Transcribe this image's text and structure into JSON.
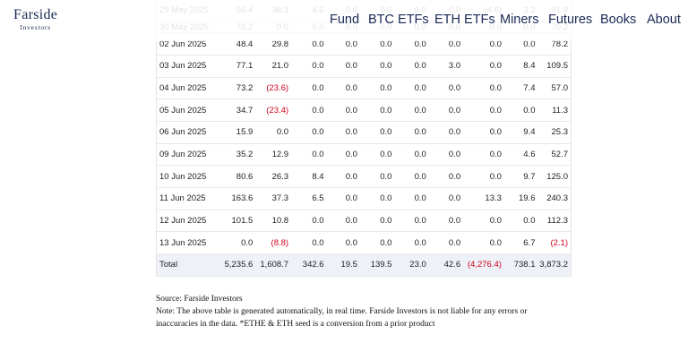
{
  "header": {
    "logo_main": "Farside",
    "logo_sub": "Investors",
    "nav": [
      "Fund",
      "BTC ETFs",
      "ETH ETFs",
      "Miners",
      "Futures",
      "Books",
      "About"
    ]
  },
  "table": {
    "rows": [
      {
        "date": "29 May 2025",
        "cells": [
          "50.4",
          "38.3",
          "4.6",
          "0.0",
          "0.0",
          "0.0",
          "0.0",
          "(4.6)",
          "3.2",
          "91.9"
        ]
      },
      {
        "date": "30 May 2025",
        "cells": [
          "70.2",
          "0.0",
          "0.0",
          "0.0",
          "0.0",
          "0.0",
          "0.0",
          "0.0",
          "0.0",
          "70.2"
        ]
      },
      {
        "date": "02 Jun 2025",
        "cells": [
          "48.4",
          "29.8",
          "0.0",
          "0.0",
          "0.0",
          "0.0",
          "0.0",
          "0.0",
          "0.0",
          "78.2"
        ]
      },
      {
        "date": "03 Jun 2025",
        "cells": [
          "77.1",
          "21.0",
          "0.0",
          "0.0",
          "0.0",
          "0.0",
          "3.0",
          "0.0",
          "8.4",
          "109.5"
        ]
      },
      {
        "date": "04 Jun 2025",
        "cells": [
          "73.2",
          "(23.6)",
          "0.0",
          "0.0",
          "0.0",
          "0.0",
          "0.0",
          "0.0",
          "7.4",
          "57.0"
        ]
      },
      {
        "date": "05 Jun 2025",
        "cells": [
          "34.7",
          "(23.4)",
          "0.0",
          "0.0",
          "0.0",
          "0.0",
          "0.0",
          "0.0",
          "0.0",
          "11.3"
        ]
      },
      {
        "date": "06 Jun 2025",
        "cells": [
          "15.9",
          "0.0",
          "0.0",
          "0.0",
          "0.0",
          "0.0",
          "0.0",
          "0.0",
          "9.4",
          "25.3"
        ]
      },
      {
        "date": "09 Jun 2025",
        "cells": [
          "35.2",
          "12.9",
          "0.0",
          "0.0",
          "0.0",
          "0.0",
          "0.0",
          "0.0",
          "4.6",
          "52.7"
        ]
      },
      {
        "date": "10 Jun 2025",
        "cells": [
          "80.6",
          "26.3",
          "8.4",
          "0.0",
          "0.0",
          "0.0",
          "0.0",
          "0.0",
          "9.7",
          "125.0"
        ]
      },
      {
        "date": "11 Jun 2025",
        "cells": [
          "163.6",
          "37.3",
          "6.5",
          "0.0",
          "0.0",
          "0.0",
          "0.0",
          "13.3",
          "19.6",
          "240.3"
        ]
      },
      {
        "date": "12 Jun 2025",
        "cells": [
          "101.5",
          "10.8",
          "0.0",
          "0.0",
          "0.0",
          "0.0",
          "0.0",
          "0.0",
          "0.0",
          "112.3"
        ]
      },
      {
        "date": "13 Jun 2025",
        "cells": [
          "0.0",
          "(8.8)",
          "0.0",
          "0.0",
          "0.0",
          "0.0",
          "0.0",
          "0.0",
          "6.7",
          "(2.1)"
        ]
      }
    ],
    "total": {
      "label": "Total",
      "cells": [
        "5,235.6",
        "1,608.7",
        "342.6",
        "19.5",
        "139.5",
        "23.0",
        "42.6",
        "(4,276.4)",
        "738.1",
        "3,873.2"
      ]
    }
  },
  "notes": {
    "source": "Source: Farside Investors",
    "note_line1": "Note: The above table is generated automatically, in real time. Farside Investors is not liable for any errors or",
    "note_line2": "inaccuracies in the data. *ETHE & ETH seed is a conversion from a prior product"
  },
  "colors": {
    "negative": "#d0021b",
    "brand": "#1a2a55",
    "total_row_bg": "#eef1f8"
  }
}
